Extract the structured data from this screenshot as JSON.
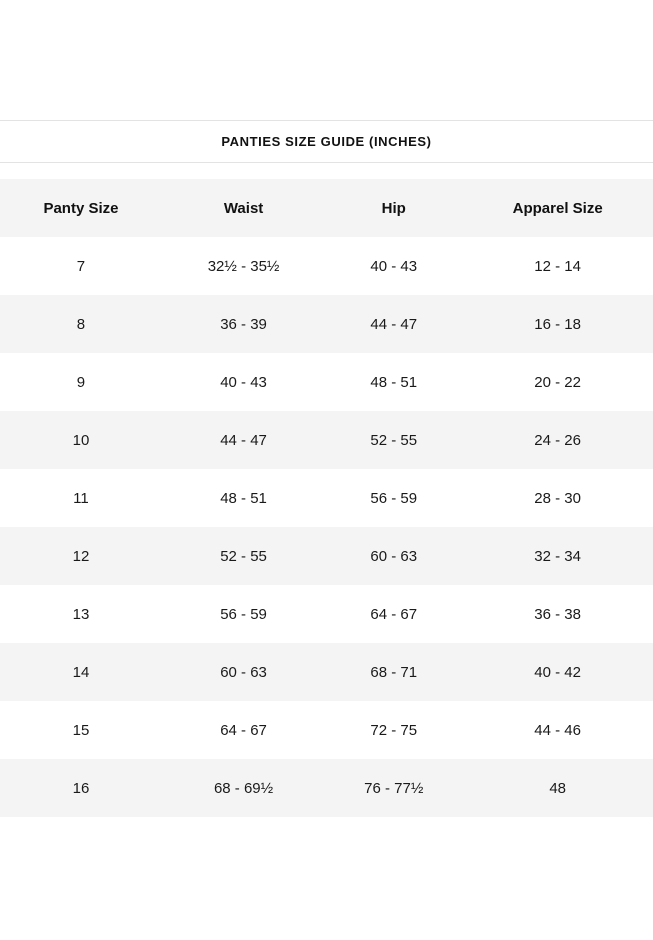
{
  "title": "PANTIES SIZE GUIDE (INCHES)",
  "size_table": {
    "columns": [
      "Panty Size",
      "Waist",
      "Hip",
      "Apparel Size"
    ],
    "rows": [
      [
        "7",
        "32½ - 35½",
        "40 - 43",
        "12 - 14"
      ],
      [
        "8",
        "36 - 39",
        "44 - 47",
        "16 - 18"
      ],
      [
        "9",
        "40 - 43",
        "48 - 51",
        "20 - 22"
      ],
      [
        "10",
        "44 - 47",
        "52 - 55",
        "24 - 26"
      ],
      [
        "11",
        "48 - 51",
        "56 - 59",
        "28 - 30"
      ],
      [
        "12",
        "52 - 55",
        "60 - 63",
        "32 - 34"
      ],
      [
        "13",
        "56 - 59",
        "64 - 67",
        "36 - 38"
      ],
      [
        "14",
        "60 - 63",
        "68 - 71",
        "40 - 42"
      ],
      [
        "15",
        "64 - 67",
        "72 - 75",
        "44 - 46"
      ],
      [
        "16",
        "68 - 69½",
        "76 - 77½",
        "48"
      ]
    ]
  },
  "colors": {
    "row_shade": "#f4f4f4",
    "divider": "#e3e3e3",
    "text": "#1a1a1a"
  }
}
